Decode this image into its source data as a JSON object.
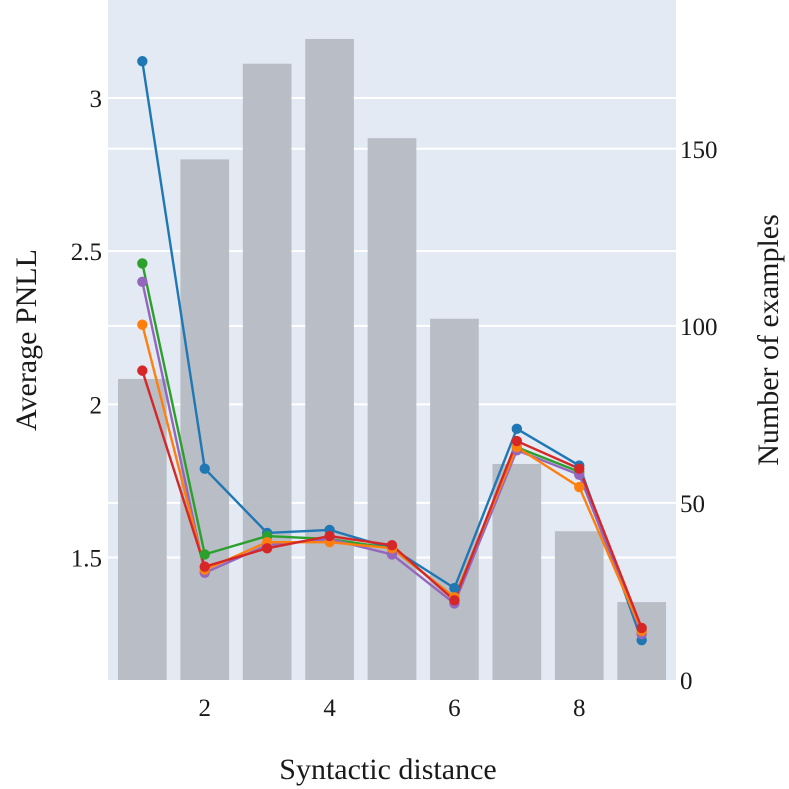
{
  "chart_data": {
    "type": "bar+line",
    "xlabel": "Syntactic distance",
    "ylabel_left": "Average PNLL",
    "ylabel_right": "Number of examples",
    "x_ticks": [
      "2",
      "4",
      "6",
      "8"
    ],
    "y_left_ticks": [
      "1.5",
      "2",
      "2.5",
      "3"
    ],
    "y_right_ticks": [
      "0",
      "50",
      "100",
      "150"
    ],
    "x_range": [
      0.45,
      9.55
    ],
    "y_left_range": [
      1.1,
      3.32
    ],
    "y_right_range": [
      0,
      192
    ],
    "grid": true,
    "background": "#e3eaf4",
    "bar_color": "#b4b9c1",
    "bars": {
      "x": [
        1,
        2,
        3,
        4,
        5,
        6,
        7,
        8,
        9
      ],
      "values": [
        85,
        147,
        174,
        181,
        153,
        102,
        61,
        42,
        22
      ]
    },
    "series": [
      {
        "color": "#1f77b4",
        "x": [
          1,
          2,
          3,
          4,
          5,
          6,
          7,
          8,
          9
        ],
        "values": [
          3.12,
          1.79,
          1.58,
          1.59,
          1.53,
          1.4,
          1.92,
          1.8,
          1.23
        ]
      },
      {
        "color": "#2ca02c",
        "x": [
          1,
          2,
          3,
          4,
          5,
          6,
          7,
          8,
          9
        ],
        "values": [
          2.46,
          1.51,
          1.57,
          1.56,
          1.53,
          1.37,
          1.86,
          1.78,
          1.26
        ]
      },
      {
        "color": "#9467bd",
        "x": [
          1,
          2,
          3,
          4,
          5,
          6,
          7,
          8,
          9
        ],
        "values": [
          2.4,
          1.45,
          1.54,
          1.56,
          1.51,
          1.35,
          1.85,
          1.77,
          1.25
        ]
      },
      {
        "color": "#ff7f0e",
        "x": [
          1,
          2,
          3,
          4,
          5,
          6,
          7,
          8,
          9
        ],
        "values": [
          2.26,
          1.46,
          1.55,
          1.55,
          1.53,
          1.37,
          1.86,
          1.73,
          1.26
        ]
      },
      {
        "color": "#d62728",
        "x": [
          1,
          2,
          3,
          4,
          5,
          6,
          7,
          8,
          9
        ],
        "values": [
          2.11,
          1.47,
          1.53,
          1.57,
          1.54,
          1.36,
          1.88,
          1.79,
          1.27
        ]
      }
    ]
  }
}
